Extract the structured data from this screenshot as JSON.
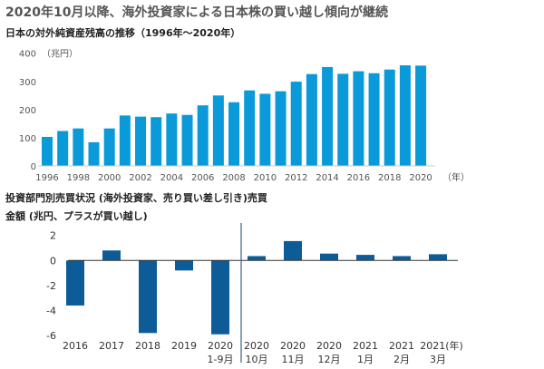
{
  "title": "2020年10月以降、海外投資家による日本株の買い越し傾向が継続",
  "chart_data": [
    {
      "type": "bar",
      "title": "日本の対外純資産残高の推移（1996年～2020年）",
      "unit_label": "（兆円）",
      "x_unit_label": "（年）",
      "categories": [
        "1996",
        "1997",
        "1998",
        "1999",
        "2000",
        "2001",
        "2002",
        "2003",
        "2004",
        "2005",
        "2006",
        "2007",
        "2008",
        "2009",
        "2010",
        "2011",
        "2012",
        "2013",
        "2014",
        "2015",
        "2016",
        "2017",
        "2018",
        "2019",
        "2020"
      ],
      "tick_labels": [
        "1996",
        "1998",
        "2000",
        "2002",
        "2004",
        "2006",
        "2008",
        "2010",
        "2012",
        "2014",
        "2016",
        "2018",
        "2020"
      ],
      "values": [
        103,
        124,
        133,
        84,
        133,
        179,
        175,
        173,
        186,
        181,
        215,
        250,
        226,
        268,
        256,
        265,
        299,
        326,
        351,
        327,
        336,
        329,
        342,
        357,
        356
      ],
      "ylim": [
        0,
        400
      ],
      "yticks": [
        0,
        100,
        200,
        300,
        400
      ],
      "grid": false,
      "color": "#0a9ad9"
    },
    {
      "type": "bar",
      "title": "投資部門別売買状況 (海外投資家、売り買い差し引き)売買",
      "ylabel": "金額 (兆円、プラスが買い越し)",
      "categories": [
        [
          "2016",
          ""
        ],
        [
          "2017",
          ""
        ],
        [
          "2018",
          ""
        ],
        [
          "2019",
          ""
        ],
        [
          "2020",
          "1-9月"
        ],
        [
          "2020",
          "10月"
        ],
        [
          "2020",
          "11月"
        ],
        [
          "2020",
          "12月"
        ],
        [
          "2021",
          "1月"
        ],
        [
          "2021",
          "2月"
        ],
        [
          "2021(年)",
          "3月"
        ]
      ],
      "values": [
        -3.6,
        0.8,
        -5.8,
        -0.8,
        -5.9,
        0.35,
        1.55,
        0.55,
        0.45,
        0.35,
        0.5
      ],
      "ylim": [
        -6,
        2
      ],
      "yticks": [
        -6,
        -4,
        -2,
        0,
        2
      ],
      "grid": false,
      "color": "#0d5c97"
    }
  ]
}
